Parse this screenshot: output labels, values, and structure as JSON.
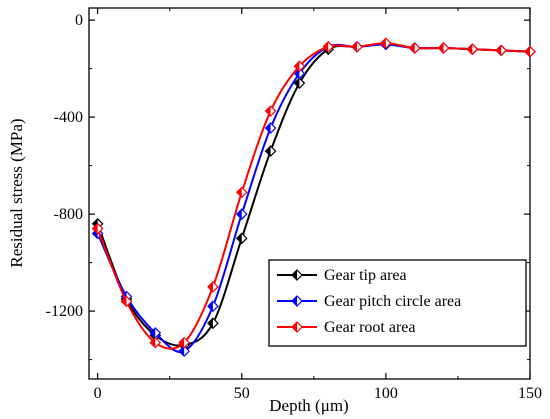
{
  "chart_data": {
    "type": "line",
    "title": "",
    "xlabel": "Depth (μm)",
    "ylabel": "Residual stress (MPa)",
    "xlim": [
      -3,
      150
    ],
    "ylim": [
      -1480,
      50
    ],
    "xticks": [
      0,
      50,
      100,
      150
    ],
    "xtick_labels": [
      "0",
      "50",
      "100",
      "150"
    ],
    "yticks": [
      0,
      -400,
      -800,
      -1200
    ],
    "ytick_labels": [
      "0",
      "-400",
      "-800",
      "-1200"
    ],
    "grid": false,
    "legend": "bottom-right",
    "series": [
      {
        "name": "Gear tip area",
        "color": "#000000",
        "x": [
          0,
          10,
          20,
          30,
          40,
          50,
          60,
          70,
          80,
          90,
          100,
          110,
          120,
          130,
          140,
          150
        ],
        "y": [
          -840,
          -1150,
          -1300,
          -1340,
          -1250,
          -900,
          -540,
          -260,
          -120,
          -110,
          -100,
          -115,
          -115,
          -120,
          -125,
          -130
        ]
      },
      {
        "name": "Gear pitch circle area",
        "color": "#0000ff",
        "x": [
          0,
          10,
          20,
          30,
          40,
          50,
          60,
          70,
          80,
          90,
          100,
          110,
          120,
          130,
          140,
          150
        ],
        "y": [
          -880,
          -1140,
          -1290,
          -1365,
          -1180,
          -800,
          -445,
          -220,
          -110,
          -110,
          -100,
          -115,
          -115,
          -120,
          -125,
          -130
        ]
      },
      {
        "name": "Gear root area",
        "color": "#ff0000",
        "x": [
          0,
          10,
          20,
          30,
          40,
          50,
          60,
          70,
          80,
          90,
          100,
          110,
          120,
          130,
          140,
          150
        ],
        "y": [
          -860,
          -1160,
          -1330,
          -1330,
          -1100,
          -710,
          -375,
          -190,
          -110,
          -110,
          -95,
          -115,
          -115,
          -120,
          -125,
          -130
        ]
      }
    ]
  }
}
